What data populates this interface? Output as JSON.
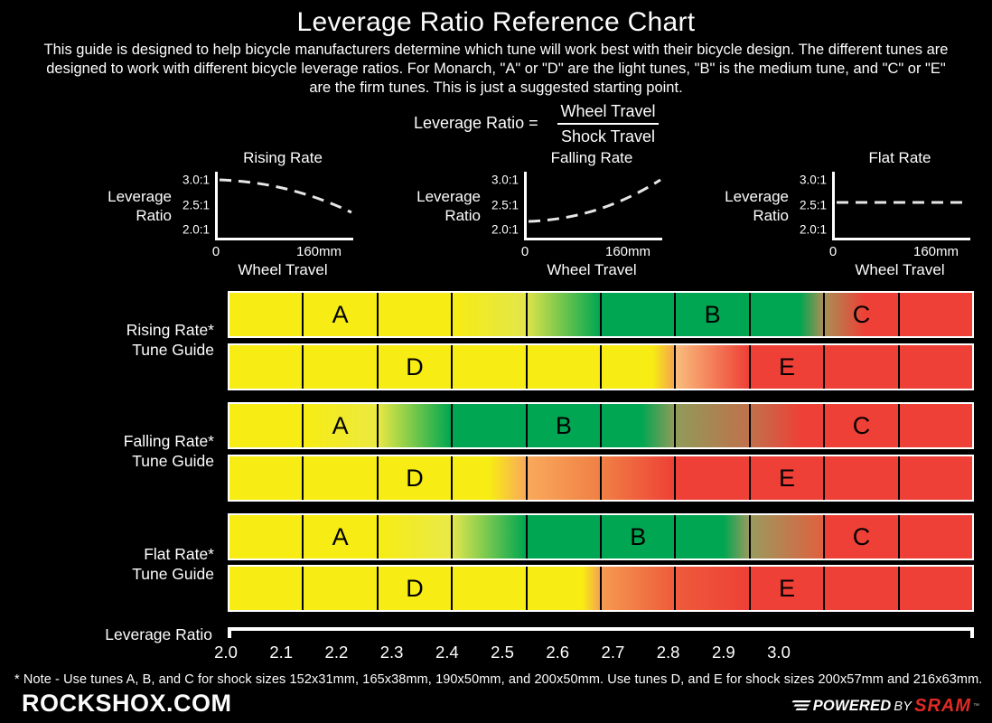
{
  "header": {
    "title": "Leverage Ratio Reference Chart",
    "subtitle": "This guide is designed to help bicycle manufacturers determine which tune will work best with their bicycle design. The different tunes are designed to work with different bicycle leverage ratios. For Monarch, \"A\" or \"D\" are the light tunes, \"B\" is the medium tune, and \"C\" or \"E\" are the firm tunes. This is just a suggested starting point."
  },
  "formula": {
    "label": "Leverage Ratio =",
    "numerator": "Wheel Travel",
    "denominator": "Shock Travel"
  },
  "charts": [
    {
      "title": "Rising Rate",
      "ylabel_line1": "Leverage",
      "ylabel_line2": "Ratio",
      "y_ticks": [
        "3.0:1",
        "2.5:1",
        "2.0:1"
      ],
      "x_tick_start": "0",
      "x_tick_end": "160mm",
      "xlabel": "Wheel Travel"
    },
    {
      "title": "Falling Rate",
      "ylabel_line1": "Leverage",
      "ylabel_line2": "Ratio",
      "y_ticks": [
        "3.0:1",
        "2.5:1",
        "2.0:1"
      ],
      "x_tick_start": "0",
      "x_tick_end": "160mm",
      "xlabel": "Wheel Travel"
    },
    {
      "title": "Flat Rate",
      "ylabel_line1": "Leverage",
      "ylabel_line2": "Ratio",
      "y_ticks": [
        "3.0:1",
        "2.5:1",
        "2.0:1"
      ],
      "x_tick_start": "0",
      "x_tick_end": "160mm",
      "xlabel": "Wheel Travel"
    }
  ],
  "tune_guides": [
    {
      "label_line1": "Rising Rate*",
      "label_line2": "Tune Guide",
      "rows": [
        {
          "cells": [
            {
              "stops": [
                "#f7ec13"
              ]
            },
            {
              "letter": "A",
              "stops": [
                "#f7ec13"
              ]
            },
            {
              "stops": [
                "#f7ec13"
              ]
            },
            {
              "stops": [
                "#f7ec13",
                "#e2e64c"
              ]
            },
            {
              "stops": [
                "#dce349",
                "#00a651"
              ]
            },
            {
              "stops": [
                "#00a651"
              ]
            },
            {
              "letter": "B",
              "stops": [
                "#00a651"
              ]
            },
            {
              "stops": [
                "#00a651",
                "#00a651 68%",
                "#a98e55"
              ]
            },
            {
              "letter": "C",
              "stops": [
                "#a98e55",
                "#ee4036 55%"
              ]
            },
            {
              "stops": [
                "#ee4036"
              ]
            }
          ]
        },
        {
          "cells": [
            {
              "stops": [
                "#f7ec13"
              ]
            },
            {
              "stops": [
                "#f7ec13"
              ]
            },
            {
              "letter": "D",
              "stops": [
                "#f7ec13"
              ]
            },
            {
              "stops": [
                "#f7ec13"
              ]
            },
            {
              "stops": [
                "#f7ec13"
              ]
            },
            {
              "stops": [
                "#f7ec13",
                "#f7ec13 70%",
                "#f6a54e"
              ]
            },
            {
              "stops": [
                "#f9bd7d",
                "#ee4036"
              ]
            },
            {
              "letter": "E",
              "stops": [
                "#ee4036"
              ]
            },
            {
              "stops": [
                "#ee4036"
              ]
            },
            {
              "stops": [
                "#ee4036"
              ]
            }
          ]
        }
      ]
    },
    {
      "label_line1": "Falling Rate*",
      "label_line2": "Tune Guide",
      "rows": [
        {
          "cells": [
            {
              "stops": [
                "#f7ec13"
              ]
            },
            {
              "letter": "A",
              "stops": [
                "#f7ec13",
                "#ebe941"
              ]
            },
            {
              "stops": [
                "#e7e844",
                "#00a651"
              ]
            },
            {
              "stops": [
                "#00a651"
              ]
            },
            {
              "letter": "B",
              "stops": [
                "#00a651"
              ]
            },
            {
              "stops": [
                "#00a651",
                "#00a651 55%",
                "#8f9b59"
              ]
            },
            {
              "stops": [
                "#8f9b59",
                "#c0714b"
              ]
            },
            {
              "stops": [
                "#c0714b",
                "#ee4036 70%"
              ]
            },
            {
              "letter": "C",
              "stops": [
                "#ee4036"
              ]
            },
            {
              "stops": [
                "#ee4036"
              ]
            }
          ]
        },
        {
          "cells": [
            {
              "stops": [
                "#f7ec13"
              ]
            },
            {
              "stops": [
                "#f7ec13"
              ]
            },
            {
              "letter": "D",
              "stops": [
                "#f7ec13"
              ]
            },
            {
              "stops": [
                "#f7ec13",
                "#f7ec13 50%",
                "#f9a95b"
              ]
            },
            {
              "stops": [
                "#f9a95b",
                "#f08045"
              ]
            },
            {
              "stops": [
                "#f08045",
                "#ee4036"
              ]
            },
            {
              "stops": [
                "#ee4036"
              ]
            },
            {
              "letter": "E",
              "stops": [
                "#ee4036"
              ]
            },
            {
              "stops": [
                "#ee4036"
              ]
            },
            {
              "stops": [
                "#ee4036"
              ]
            }
          ]
        }
      ]
    },
    {
      "label_line1": "Flat Rate*",
      "label_line2": "Tune Guide",
      "rows": [
        {
          "cells": [
            {
              "stops": [
                "#f7ec13"
              ]
            },
            {
              "letter": "A",
              "stops": [
                "#f7ec13"
              ]
            },
            {
              "stops": [
                "#f7ec13",
                "#e9e94a"
              ]
            },
            {
              "stops": [
                "#e2e64d",
                "#00a651"
              ]
            },
            {
              "stops": [
                "#00a651"
              ]
            },
            {
              "letter": "B",
              "stops": [
                "#00a651"
              ]
            },
            {
              "stops": [
                "#00a651",
                "#00a651 65%",
                "#9a9a5e"
              ]
            },
            {
              "stops": [
                "#9a9a5e",
                "#e0603f"
              ]
            },
            {
              "letter": "C",
              "stops": [
                "#ee4036"
              ]
            },
            {
              "stops": [
                "#ee4036"
              ]
            }
          ]
        },
        {
          "cells": [
            {
              "stops": [
                "#f7ec13"
              ]
            },
            {
              "stops": [
                "#f7ec13"
              ]
            },
            {
              "letter": "D",
              "stops": [
                "#f7ec13"
              ]
            },
            {
              "stops": [
                "#f7ec13"
              ]
            },
            {
              "stops": [
                "#f7ec13",
                "#f7ec13 76%",
                "#f6a350"
              ]
            },
            {
              "stops": [
                "#f59a51",
                "#ee5b3b"
              ]
            },
            {
              "stops": [
                "#ee5b3b",
                "#ee4036"
              ]
            },
            {
              "letter": "E",
              "stops": [
                "#ee4036"
              ]
            },
            {
              "stops": [
                "#ee4036"
              ]
            },
            {
              "stops": [
                "#ee4036"
              ]
            }
          ]
        }
      ]
    }
  ],
  "axis": {
    "label": "Leverage Ratio",
    "ticks": [
      "2.0",
      "2.1",
      "2.2",
      "2.3",
      "2.4",
      "2.5",
      "2.6",
      "2.7",
      "2.8",
      "2.9",
      "3.0"
    ]
  },
  "footer": {
    "note": "* Note - Use tunes A, B, and C for shock sizes 152x31mm, 165x38mm, 190x50mm, and 200x50mm.  Use tunes D, and E for shock sizes 200x57mm and 216x63mm.",
    "brand": "ROCKSHOX.COM",
    "powered": "POWERED",
    "by": "BY",
    "sram": "SRAM",
    "tm": "™"
  },
  "colors": {
    "background": "#000000",
    "text": "#fdfdfd",
    "light_tune_yellow": "#f7ec13",
    "medium_tune_green": "#00a651",
    "firm_tune_red": "#ee4036",
    "sram_red": "#e02a26"
  },
  "chart_data": [
    {
      "type": "line",
      "title": "Rising Rate",
      "xlabel": "Wheel Travel",
      "ylabel": "Leverage Ratio",
      "x": [
        0,
        40,
        80,
        120,
        160
      ],
      "y": [
        3.0,
        2.93,
        2.8,
        2.6,
        2.35
      ],
      "x_ticks": [
        "0",
        "160mm"
      ],
      "y_ticks": [
        "3.0:1",
        "2.5:1",
        "2.0:1"
      ],
      "ylim": [
        2.0,
        3.0
      ],
      "line_style": "dashed"
    },
    {
      "type": "line",
      "title": "Falling Rate",
      "xlabel": "Wheel Travel",
      "ylabel": "Leverage Ratio",
      "x": [
        0,
        40,
        80,
        120,
        160
      ],
      "y": [
        2.2,
        2.25,
        2.4,
        2.65,
        3.0
      ],
      "x_ticks": [
        "0",
        "160mm"
      ],
      "y_ticks": [
        "3.0:1",
        "2.5:1",
        "2.0:1"
      ],
      "ylim": [
        2.0,
        3.0
      ],
      "line_style": "dashed"
    },
    {
      "type": "line",
      "title": "Flat Rate",
      "xlabel": "Wheel Travel",
      "ylabel": "Leverage Ratio",
      "x": [
        0,
        40,
        80,
        120,
        160
      ],
      "y": [
        2.5,
        2.5,
        2.5,
        2.5,
        2.5
      ],
      "x_ticks": [
        "0",
        "160mm"
      ],
      "y_ticks": [
        "3.0:1",
        "2.5:1",
        "2.0:1"
      ],
      "ylim": [
        2.0,
        3.0
      ],
      "line_style": "dashed"
    },
    {
      "type": "heatmap",
      "title": "Tune Guide color bands",
      "axis_label": "Leverage Ratio",
      "axis_ticks": [
        2.0,
        2.1,
        2.2,
        2.3,
        2.4,
        2.5,
        2.6,
        2.7,
        2.8,
        2.9,
        3.0
      ],
      "segments_per_row": 10,
      "band_colors": {
        "light_tune": "#f7ec13",
        "medium_tune": "#00a651",
        "firm_tune": "#ee4036"
      },
      "letter_segment_positions": {
        "rising": {
          "A": 2,
          "B": 7,
          "C": 9,
          "D": 3,
          "E": 8
        },
        "falling": {
          "A": 2,
          "B": 5,
          "C": 9,
          "D": 3,
          "E": 8
        },
        "flat": {
          "A": 2,
          "B": 6,
          "C": 9,
          "D": 3,
          "E": 8
        }
      }
    }
  ]
}
